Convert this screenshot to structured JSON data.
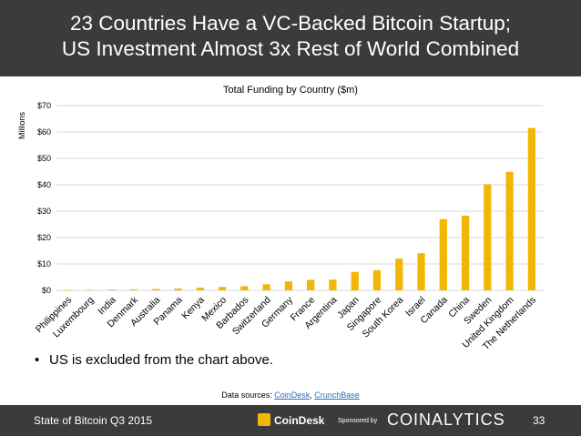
{
  "header": {
    "title_line1": "23 Countries Have a VC-Backed Bitcoin Startup;",
    "title_line2": "US Investment Almost 3x Rest of World Combined"
  },
  "chart_data": {
    "type": "bar",
    "title": "Total Funding by Country ($m)",
    "ylabel": "Millions",
    "xlabel": "",
    "ylim": [
      0,
      70
    ],
    "yticks": [
      0,
      10,
      20,
      30,
      40,
      50,
      60,
      70
    ],
    "ytick_labels": [
      "$0",
      "$10",
      "$20",
      "$30",
      "$40",
      "$50",
      "$60",
      "$70"
    ],
    "bar_color": "#f2b705",
    "grid": true,
    "categories": [
      "Philippines",
      "Luxembourg",
      "India",
      "Denmark",
      "Australia",
      "Panama",
      "Kenya",
      "Mexico",
      "Barbados",
      "Switzerland",
      "Germany",
      "France",
      "Argentina",
      "Japan",
      "Singapore",
      "South Korea",
      "Israel",
      "Canada",
      "China",
      "Sweden",
      "United Kingdom",
      "The Netherlands"
    ],
    "values": [
      0.1,
      0.2,
      0.3,
      0.4,
      0.5,
      0.7,
      1.0,
      1.3,
      1.6,
      2.3,
      3.4,
      4.0,
      4.1,
      7.0,
      7.6,
      12.0,
      14.1,
      27.0,
      28.3,
      40.2,
      44.9,
      61.5
    ]
  },
  "note": {
    "bullet": "•",
    "text": "US is excluded from the chart above."
  },
  "sources": {
    "prefix": "Data sources: ",
    "link1": "CoinDesk",
    "separator": ", ",
    "link2": "CrunchBase"
  },
  "footer": {
    "left": "State of Bitcoin Q3 2015",
    "coindesk": "CoinDesk",
    "sponsored": "Sponsored by",
    "brand": "COINALYTICS",
    "page": "33"
  }
}
